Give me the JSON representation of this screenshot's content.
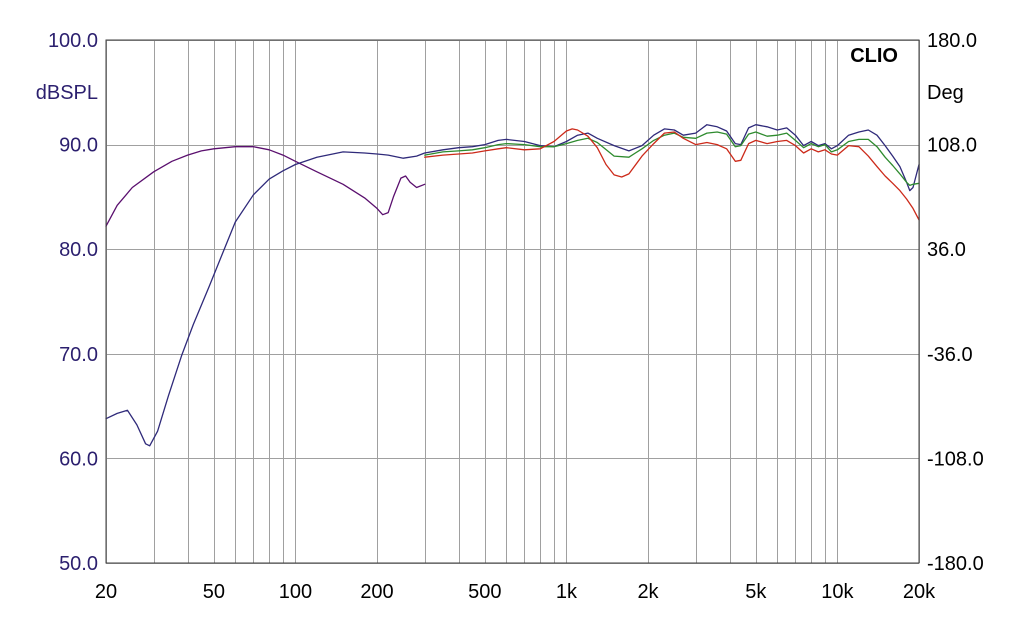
{
  "chart_data": {
    "type": "line",
    "brand": "CLIO",
    "ylabel": "dBSPL",
    "y2label": "Deg",
    "xscale": "log",
    "xlim": [
      20,
      20000
    ],
    "ylim": [
      50,
      100
    ],
    "y2lim": [
      -180,
      180
    ],
    "grid": true,
    "x_tick_labels": [
      {
        "value": 20,
        "label": "20"
      },
      {
        "value": 50,
        "label": "50"
      },
      {
        "value": 100,
        "label": "100"
      },
      {
        "value": 200,
        "label": "200"
      },
      {
        "value": 500,
        "label": "500"
      },
      {
        "value": 1000,
        "label": "1k"
      },
      {
        "value": 2000,
        "label": "2k"
      },
      {
        "value": 5000,
        "label": "5k"
      },
      {
        "value": 10000,
        "label": "10k"
      },
      {
        "value": 20000,
        "label": "20k"
      }
    ],
    "y_tick_labels": [
      {
        "value": 100,
        "label": "100.0"
      },
      {
        "value": 90,
        "label": "90.0"
      },
      {
        "value": 80,
        "label": "80.0"
      },
      {
        "value": 70,
        "label": "70.0"
      },
      {
        "value": 60,
        "label": "60.0"
      },
      {
        "value": 50,
        "label": "50.0"
      }
    ],
    "y2_tick_labels": [
      {
        "value": 180,
        "label": "180.0"
      },
      {
        "value": 108,
        "label": "108.0"
      },
      {
        "value": 36,
        "label": "36.0"
      },
      {
        "value": -36,
        "label": "-36.0"
      },
      {
        "value": -108,
        "label": "-108.0"
      },
      {
        "value": -180,
        "label": "-180.0"
      }
    ],
    "series": [
      {
        "color": "#5a0f6e",
        "points": [
          [
            20,
            82.2
          ],
          [
            22,
            84.2
          ],
          [
            25,
            85.9
          ],
          [
            30,
            87.4
          ],
          [
            35,
            88.4
          ],
          [
            40,
            89.0
          ],
          [
            45,
            89.4
          ],
          [
            50,
            89.6
          ],
          [
            55,
            89.7
          ],
          [
            60,
            89.8
          ],
          [
            70,
            89.8
          ],
          [
            80,
            89.5
          ],
          [
            90,
            89.0
          ],
          [
            100,
            88.4
          ],
          [
            120,
            87.4
          ],
          [
            150,
            86.2
          ],
          [
            180,
            84.9
          ],
          [
            200,
            83.9
          ],
          [
            210,
            83.3
          ],
          [
            220,
            83.5
          ],
          [
            230,
            85.0
          ],
          [
            245,
            86.8
          ],
          [
            255,
            87.0
          ],
          [
            265,
            86.4
          ],
          [
            280,
            85.9
          ],
          [
            300,
            86.2
          ]
        ]
      },
      {
        "color": "#2f2a7a",
        "points": [
          [
            20,
            63.8
          ],
          [
            22,
            64.3
          ],
          [
            24,
            64.6
          ],
          [
            26,
            63.2
          ],
          [
            28,
            61.4
          ],
          [
            29,
            61.2
          ],
          [
            31,
            62.6
          ],
          [
            34,
            66.0
          ],
          [
            38,
            69.8
          ],
          [
            42,
            72.8
          ],
          [
            48,
            76.4
          ],
          [
            55,
            80.2
          ],
          [
            60,
            82.6
          ],
          [
            70,
            85.2
          ],
          [
            80,
            86.7
          ],
          [
            90,
            87.5
          ],
          [
            100,
            88.1
          ],
          [
            120,
            88.8
          ],
          [
            150,
            89.3
          ],
          [
            180,
            89.2
          ],
          [
            200,
            89.1
          ],
          [
            220,
            89.0
          ],
          [
            250,
            88.7
          ],
          [
            280,
            88.9
          ],
          [
            300,
            89.2
          ],
          [
            350,
            89.5
          ],
          [
            400,
            89.7
          ],
          [
            450,
            89.8
          ],
          [
            500,
            90.0
          ],
          [
            560,
            90.4
          ],
          [
            600,
            90.5
          ],
          [
            700,
            90.3
          ],
          [
            800,
            89.9
          ],
          [
            900,
            89.8
          ],
          [
            1000,
            90.3
          ],
          [
            1100,
            90.9
          ],
          [
            1200,
            91.1
          ],
          [
            1300,
            90.6
          ],
          [
            1500,
            89.9
          ],
          [
            1700,
            89.4
          ],
          [
            1900,
            89.9
          ],
          [
            2100,
            90.9
          ],
          [
            2300,
            91.5
          ],
          [
            2500,
            91.4
          ],
          [
            2700,
            90.9
          ],
          [
            3000,
            91.1
          ],
          [
            3300,
            91.9
          ],
          [
            3600,
            91.7
          ],
          [
            3900,
            91.3
          ],
          [
            4200,
            90.1
          ],
          [
            4400,
            90.0
          ],
          [
            4700,
            91.6
          ],
          [
            5000,
            91.9
          ],
          [
            5500,
            91.7
          ],
          [
            6000,
            91.4
          ],
          [
            6500,
            91.6
          ],
          [
            7000,
            90.9
          ],
          [
            7500,
            89.9
          ],
          [
            8000,
            90.3
          ],
          [
            8500,
            89.9
          ],
          [
            9000,
            90.1
          ],
          [
            9500,
            89.6
          ],
          [
            10000,
            89.9
          ],
          [
            11000,
            90.9
          ],
          [
            12000,
            91.2
          ],
          [
            13000,
            91.4
          ],
          [
            14000,
            90.9
          ],
          [
            15000,
            89.9
          ],
          [
            16000,
            88.9
          ],
          [
            17000,
            87.9
          ],
          [
            18000,
            86.4
          ],
          [
            18500,
            85.6
          ],
          [
            19000,
            85.9
          ],
          [
            20000,
            88.1
          ]
        ]
      },
      {
        "color": "#2e8b2e",
        "points": [
          [
            300,
            89.0
          ],
          [
            350,
            89.3
          ],
          [
            400,
            89.4
          ],
          [
            450,
            89.5
          ],
          [
            500,
            89.7
          ],
          [
            560,
            90.0
          ],
          [
            600,
            90.1
          ],
          [
            700,
            90.0
          ],
          [
            800,
            89.8
          ],
          [
            900,
            89.8
          ],
          [
            1000,
            90.1
          ],
          [
            1100,
            90.4
          ],
          [
            1200,
            90.6
          ],
          [
            1300,
            90.2
          ],
          [
            1500,
            88.9
          ],
          [
            1700,
            88.8
          ],
          [
            1900,
            89.6
          ],
          [
            2100,
            90.4
          ],
          [
            2300,
            90.9
          ],
          [
            2500,
            91.1
          ],
          [
            2700,
            90.7
          ],
          [
            3000,
            90.6
          ],
          [
            3300,
            91.1
          ],
          [
            3600,
            91.2
          ],
          [
            3900,
            91.0
          ],
          [
            4200,
            89.8
          ],
          [
            4400,
            89.9
          ],
          [
            4700,
            91.0
          ],
          [
            5000,
            91.2
          ],
          [
            5500,
            90.8
          ],
          [
            6000,
            90.9
          ],
          [
            6500,
            91.1
          ],
          [
            7000,
            90.4
          ],
          [
            7500,
            89.7
          ],
          [
            8000,
            90.1
          ],
          [
            8500,
            89.8
          ],
          [
            9000,
            90.0
          ],
          [
            9500,
            89.3
          ],
          [
            10000,
            89.5
          ],
          [
            11000,
            90.3
          ],
          [
            12000,
            90.5
          ],
          [
            13000,
            90.5
          ],
          [
            14000,
            89.8
          ],
          [
            15000,
            88.8
          ],
          [
            16000,
            88.0
          ],
          [
            17000,
            87.2
          ],
          [
            18000,
            86.4
          ],
          [
            18500,
            86.1
          ],
          [
            19000,
            86.2
          ],
          [
            20000,
            86.3
          ]
        ]
      },
      {
        "color": "#cc2a1a",
        "points": [
          [
            300,
            88.8
          ],
          [
            350,
            89.0
          ],
          [
            400,
            89.1
          ],
          [
            450,
            89.2
          ],
          [
            500,
            89.4
          ],
          [
            560,
            89.6
          ],
          [
            600,
            89.7
          ],
          [
            700,
            89.5
          ],
          [
            800,
            89.6
          ],
          [
            900,
            90.3
          ],
          [
            1000,
            91.3
          ],
          [
            1050,
            91.5
          ],
          [
            1100,
            91.4
          ],
          [
            1200,
            90.8
          ],
          [
            1300,
            89.7
          ],
          [
            1400,
            88.1
          ],
          [
            1500,
            87.1
          ],
          [
            1600,
            86.9
          ],
          [
            1700,
            87.2
          ],
          [
            1900,
            88.9
          ],
          [
            2100,
            90.1
          ],
          [
            2300,
            91.1
          ],
          [
            2500,
            91.2
          ],
          [
            2700,
            90.6
          ],
          [
            3000,
            90.0
          ],
          [
            3300,
            90.2
          ],
          [
            3600,
            90.0
          ],
          [
            3900,
            89.6
          ],
          [
            4200,
            88.4
          ],
          [
            4400,
            88.5
          ],
          [
            4700,
            90.1
          ],
          [
            5000,
            90.4
          ],
          [
            5500,
            90.1
          ],
          [
            6000,
            90.3
          ],
          [
            6500,
            90.4
          ],
          [
            7000,
            89.9
          ],
          [
            7500,
            89.2
          ],
          [
            8000,
            89.6
          ],
          [
            8500,
            89.3
          ],
          [
            9000,
            89.5
          ],
          [
            9500,
            89.1
          ],
          [
            10000,
            89.0
          ],
          [
            11000,
            89.9
          ],
          [
            12000,
            89.8
          ],
          [
            13000,
            88.9
          ],
          [
            14000,
            87.9
          ],
          [
            15000,
            87.0
          ],
          [
            16000,
            86.3
          ],
          [
            17000,
            85.6
          ],
          [
            18000,
            84.8
          ],
          [
            19000,
            83.9
          ],
          [
            20000,
            82.8
          ]
        ]
      }
    ]
  }
}
